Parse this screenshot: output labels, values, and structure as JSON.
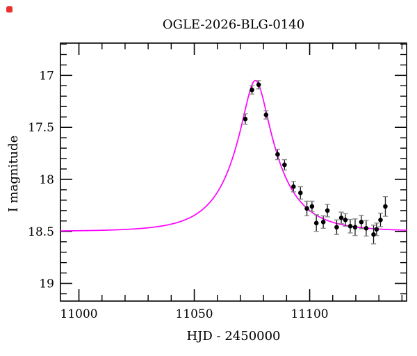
{
  "page": {
    "background": "#ffffff"
  },
  "red_dot": {
    "color": "#e8332c"
  },
  "chart_data": {
    "type": "scatter",
    "title": "OGLE-2026-BLG-0140",
    "xlabel": "HJD - 2450000",
    "ylabel": "I magnitude",
    "x_range": [
      10992,
      11142
    ],
    "y_range_mag": [
      16.69,
      19.17
    ],
    "x_major_ticks": [
      11000,
      11050,
      11100
    ],
    "x_minor_step": 10,
    "y_major_ticks": [
      17,
      17.5,
      18,
      18.5,
      19
    ],
    "y_minor_step": 0.1,
    "grid": false,
    "frame_color": "#000000",
    "point_color": "#000000",
    "errorbar_color": "#1a1a1a",
    "errorbar_cap_color": "#8a8a8a",
    "model_curve": {
      "type": "paczynski_microlensing",
      "color": "#ff00ff",
      "t0": 11076.5,
      "tE": 19.0,
      "u0": 0.27,
      "baseline_mag": 18.5,
      "peak_mag": 17.05
    },
    "observations": [
      {
        "t": 11072.1,
        "mag": 17.42,
        "err": 0.05
      },
      {
        "t": 11075.0,
        "mag": 17.14,
        "err": 0.04
      },
      {
        "t": 11077.9,
        "mag": 17.09,
        "err": 0.04
      },
      {
        "t": 11081.1,
        "mag": 17.38,
        "err": 0.04
      },
      {
        "t": 11086.1,
        "mag": 17.76,
        "err": 0.05
      },
      {
        "t": 11089.1,
        "mag": 17.86,
        "err": 0.05
      },
      {
        "t": 11093.0,
        "mag": 18.07,
        "err": 0.05
      },
      {
        "t": 11096.0,
        "mag": 18.13,
        "err": 0.06
      },
      {
        "t": 11098.8,
        "mag": 18.28,
        "err": 0.07
      },
      {
        "t": 11101.0,
        "mag": 18.26,
        "err": 0.05
      },
      {
        "t": 11102.9,
        "mag": 18.42,
        "err": 0.08
      },
      {
        "t": 11105.9,
        "mag": 18.41,
        "err": 0.06
      },
      {
        "t": 11107.7,
        "mag": 18.3,
        "err": 0.06
      },
      {
        "t": 11111.7,
        "mag": 18.46,
        "err": 0.07
      },
      {
        "t": 11113.7,
        "mag": 18.37,
        "err": 0.055
      },
      {
        "t": 11115.5,
        "mag": 18.39,
        "err": 0.06
      },
      {
        "t": 11117.6,
        "mag": 18.45,
        "err": 0.065
      },
      {
        "t": 11119.7,
        "mag": 18.46,
        "err": 0.08
      },
      {
        "t": 11122.4,
        "mag": 18.41,
        "err": 0.065
      },
      {
        "t": 11124.5,
        "mag": 18.47,
        "err": 0.075
      },
      {
        "t": 11127.7,
        "mag": 18.53,
        "err": 0.09
      },
      {
        "t": 11129.0,
        "mag": 18.48,
        "err": 0.06
      },
      {
        "t": 11130.7,
        "mag": 18.39,
        "err": 0.065
      },
      {
        "t": 11132.8,
        "mag": 18.26,
        "err": 0.095
      }
    ]
  }
}
